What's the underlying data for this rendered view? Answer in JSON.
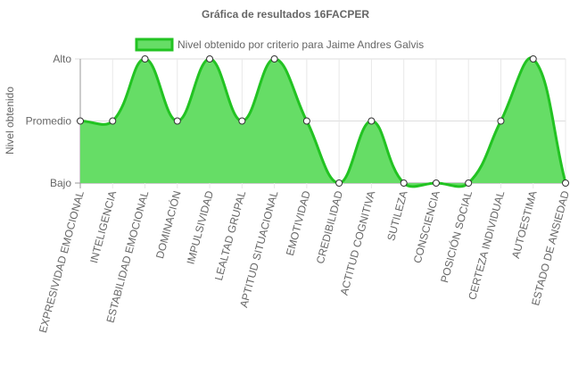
{
  "chart_data": {
    "type": "line",
    "title": "Gráfica de resultados 16FACPER",
    "y_label": "Nivel obtenido",
    "categories": [
      "EXPRESIVIDAD EMOCIONAL",
      "INTELIGENCIA",
      "ESTABILIDAD EMOCIONAL",
      "DOMINACIÓN",
      "IMPULSIVIDAD",
      "LEALTAD GRUPAL",
      "APTITUD SITUACIONAL",
      "EMOTIVIDAD",
      "CREDIBILIDAD",
      "ACTITUD COGNITIVA",
      "SUTILEZA",
      "CONSCIENCIA",
      "POSICIÓN SOCIAL",
      "CERTEZA INDIVIDUAL",
      "AUTOESTIMA",
      "ESTADO DE ANSIEDAD"
    ],
    "series": [
      {
        "name": "Nivel obtenido por criterio para Jaime Andres Galvis",
        "color": "#22c322",
        "fill": "#66dd66",
        "values": [
          2,
          2,
          3,
          2,
          3,
          2,
          3,
          2,
          1,
          2,
          1,
          1,
          1,
          2,
          3,
          1
        ]
      }
    ],
    "ylim": [
      1,
      3
    ],
    "yticks": [
      {
        "value": 1,
        "label": "Bajo"
      },
      {
        "value": 2,
        "label": "Promedio"
      },
      {
        "value": 3,
        "label": "Alto"
      }
    ],
    "grid": true,
    "legend": "top"
  }
}
